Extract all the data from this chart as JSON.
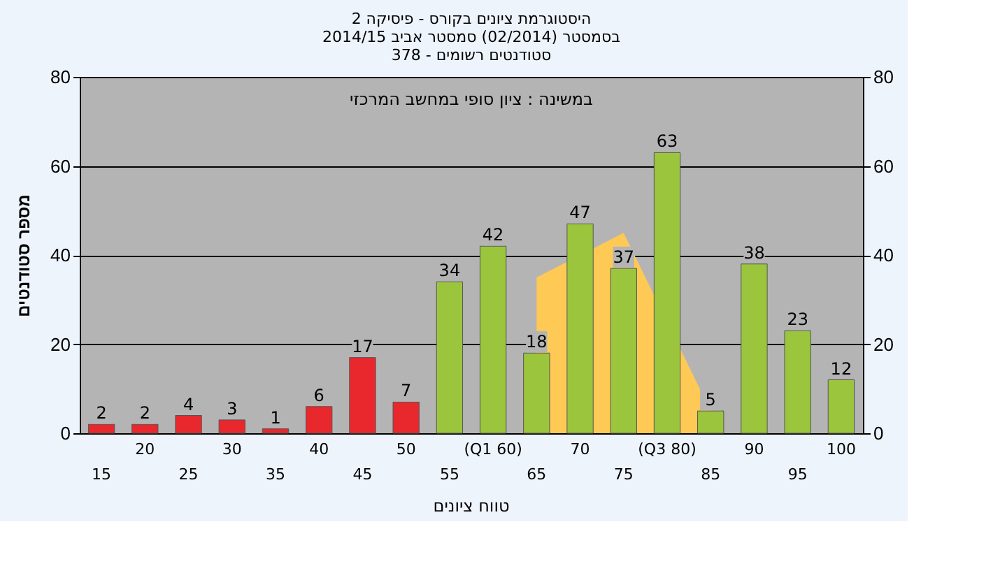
{
  "chart_data": {
    "type": "bar",
    "title": [
      "היסטוגרמת ציונים בקורס - פיסיקה 2",
      "בסמסטר  (02/2014)  סמסטר אביב 2014/15",
      "סטודנטים רשומים - 378"
    ],
    "xlabel": "טווח ציונים",
    "ylabel": "מספר סטודנטים",
    "categories": [
      "15",
      "20",
      "25",
      "30",
      "35",
      "40",
      "45",
      "50",
      "55",
      "(Q1 60)",
      "65",
      "70",
      "75",
      "(Q3 80)",
      "85",
      "90",
      "95",
      "100"
    ],
    "series": [
      {
        "type": "area",
        "color": "#ffc955",
        "values": [
          null,
          null,
          null,
          null,
          null,
          null,
          null,
          null,
          null,
          null,
          35,
          null,
          45,
          null,
          5,
          null,
          null,
          null
        ]
      },
      {
        "value_labels": [
          "2",
          "2",
          "4",
          "3",
          "1",
          "6",
          "17",
          "7",
          "34",
          "42",
          "18",
          "47",
          "37",
          "63",
          "5",
          "38",
          "23",
          "12"
        ],
        "colors": [
          "#e8282d",
          "#e8282d",
          "#e8282d",
          "#e8282d",
          "#e8282d",
          "#e8282d",
          "#e8282d",
          "#e8282d",
          "#9bc53d",
          "#9bc53d",
          "#9bc53d",
          "#9bc53d",
          "#9bc53d",
          "#9bc53d",
          "#9bc53d",
          "#9bc53d",
          "#9bc53d",
          "#9bc53d"
        ],
        "values": [
          2,
          2,
          4,
          3,
          1,
          6,
          17,
          7,
          34,
          42,
          18,
          47,
          37,
          63,
          5,
          38,
          23,
          12
        ]
      }
    ],
    "annotations": [
      "במשינה : ציון סופי במחשב המרכזי"
    ],
    "ylim": [
      0,
      80
    ],
    "yticks": [
      0,
      20,
      40,
      60,
      80
    ],
    "y2lim": [
      0,
      80
    ],
    "y2ticks": [
      0,
      20,
      40,
      60,
      80
    ],
    "grid": true
  }
}
